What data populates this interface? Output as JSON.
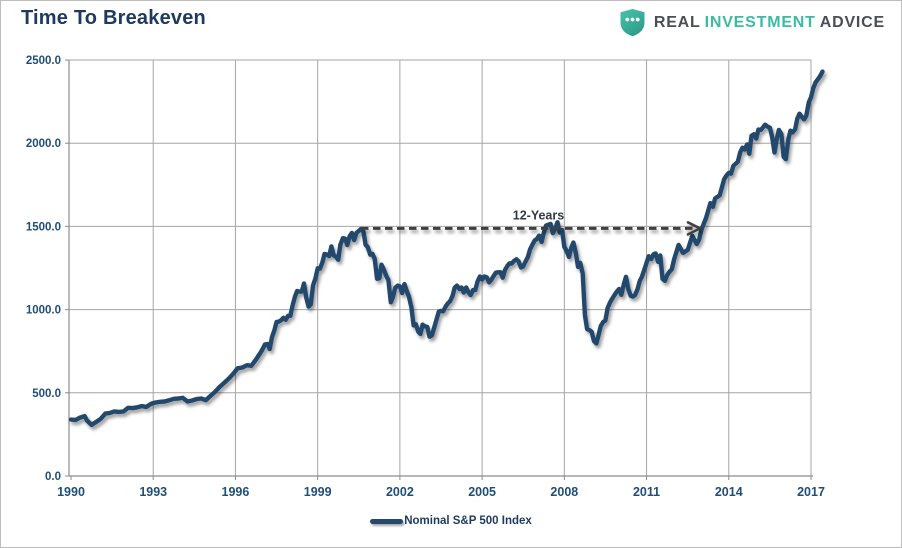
{
  "header": {
    "title": "Time To Breakeven"
  },
  "logo": {
    "shield_icon": "shield-with-three-dots",
    "shield_color_top": "#47c2ac",
    "shield_color_bottom": "#2e9e8a",
    "words": [
      {
        "text": "REAL",
        "color": "#4a4f57"
      },
      {
        "text": "INVESTMENT",
        "color": "#3bbba4"
      },
      {
        "text": "ADVICE",
        "color": "#4a4f57"
      }
    ]
  },
  "legend": {
    "label": "Nominal S&P 500 Index"
  },
  "chart_data": {
    "type": "line",
    "title": "Time To Breakeven",
    "xlabel": "",
    "ylabel": "",
    "xlim": [
      1990,
      2017.5
    ],
    "ylim": [
      0,
      2500
    ],
    "grid": true,
    "grid_color": "#a6a6a6",
    "axis_color": "#8c8c8c",
    "tick_label_color": "#1f4e79",
    "legend_position": "bottom-center",
    "x_ticks": [
      {
        "value": 1990,
        "label": "1990"
      },
      {
        "value": 1993,
        "label": "1993"
      },
      {
        "value": 1996,
        "label": "1996"
      },
      {
        "value": 1999,
        "label": "1999"
      },
      {
        "value": 2002,
        "label": "2002"
      },
      {
        "value": 2005,
        "label": "2005"
      },
      {
        "value": 2008,
        "label": "2008"
      },
      {
        "value": 2011,
        "label": "2011"
      },
      {
        "value": 2014,
        "label": "2014"
      },
      {
        "value": 2017,
        "label": "2017"
      }
    ],
    "y_ticks": [
      {
        "value": 0,
        "label": "0.0"
      },
      {
        "value": 500,
        "label": "500.0"
      },
      {
        "value": 1000,
        "label": "1000.0"
      },
      {
        "value": 1500,
        "label": "1500.0"
      },
      {
        "value": 2000,
        "label": "2000.0"
      },
      {
        "value": 2500,
        "label": "2500.0"
      }
    ],
    "annotation": {
      "label": "12-Years",
      "start_year": 2000.58,
      "end_year": 2012.95,
      "value": 1488,
      "arrow_color": "#3f3f3f",
      "label_color": "#2e3b47"
    },
    "series": [
      {
        "name": "Nominal S&P 500 Index",
        "color": "#234a6d",
        "points": [
          [
            1990.0,
            339
          ],
          [
            1990.17,
            337
          ],
          [
            1990.33,
            351
          ],
          [
            1990.5,
            360
          ],
          [
            1990.58,
            334
          ],
          [
            1990.75,
            307
          ],
          [
            1990.92,
            325
          ],
          [
            1991.08,
            343
          ],
          [
            1991.25,
            375
          ],
          [
            1991.42,
            379
          ],
          [
            1991.58,
            388
          ],
          [
            1991.75,
            385
          ],
          [
            1991.92,
            388
          ],
          [
            1992.08,
            410
          ],
          [
            1992.25,
            408
          ],
          [
            1992.42,
            413
          ],
          [
            1992.58,
            420
          ],
          [
            1992.75,
            415
          ],
          [
            1992.92,
            433
          ],
          [
            1993.08,
            442
          ],
          [
            1993.25,
            446
          ],
          [
            1993.42,
            448
          ],
          [
            1993.58,
            455
          ],
          [
            1993.75,
            464
          ],
          [
            1993.92,
            466
          ],
          [
            1994.08,
            470
          ],
          [
            1994.25,
            448
          ],
          [
            1994.42,
            454
          ],
          [
            1994.58,
            462
          ],
          [
            1994.75,
            466
          ],
          [
            1994.92,
            456
          ],
          [
            1995.08,
            480
          ],
          [
            1995.25,
            505
          ],
          [
            1995.42,
            535
          ],
          [
            1995.58,
            558
          ],
          [
            1995.75,
            585
          ],
          [
            1995.92,
            615
          ],
          [
            1996.08,
            647
          ],
          [
            1996.25,
            652
          ],
          [
            1996.42,
            666
          ],
          [
            1996.58,
            662
          ],
          [
            1996.75,
            700
          ],
          [
            1996.92,
            743
          ],
          [
            1997.0,
            766
          ],
          [
            1997.08,
            791
          ],
          [
            1997.17,
            793
          ],
          [
            1997.25,
            763
          ],
          [
            1997.33,
            833
          ],
          [
            1997.42,
            876
          ],
          [
            1997.5,
            926
          ],
          [
            1997.58,
            927
          ],
          [
            1997.67,
            937
          ],
          [
            1997.75,
            951
          ],
          [
            1997.83,
            939
          ],
          [
            1997.92,
            963
          ],
          [
            1998.0,
            963
          ],
          [
            1998.08,
            1023
          ],
          [
            1998.17,
            1077
          ],
          [
            1998.25,
            1112
          ],
          [
            1998.33,
            1108
          ],
          [
            1998.42,
            1109
          ],
          [
            1998.5,
            1157
          ],
          [
            1998.58,
            1074
          ],
          [
            1998.67,
            1018
          ],
          [
            1998.75,
            1032
          ],
          [
            1998.83,
            1144
          ],
          [
            1998.92,
            1190
          ],
          [
            1999.0,
            1248
          ],
          [
            1999.08,
            1246
          ],
          [
            1999.17,
            1282
          ],
          [
            1999.25,
            1334
          ],
          [
            1999.33,
            1332
          ],
          [
            1999.42,
            1322
          ],
          [
            1999.5,
            1380
          ],
          [
            1999.58,
            1327
          ],
          [
            1999.67,
            1318
          ],
          [
            1999.75,
            1300
          ],
          [
            1999.83,
            1391
          ],
          [
            1999.92,
            1429
          ],
          [
            2000.0,
            1426
          ],
          [
            2000.08,
            1388
          ],
          [
            2000.17,
            1442
          ],
          [
            2000.25,
            1461
          ],
          [
            2000.33,
            1418
          ],
          [
            2000.42,
            1462
          ],
          [
            2000.5,
            1473
          ],
          [
            2000.58,
            1485
          ],
          [
            2000.67,
            1468
          ],
          [
            2000.75,
            1390
          ],
          [
            2000.83,
            1375
          ],
          [
            2000.92,
            1330
          ],
          [
            2001.0,
            1335
          ],
          [
            2001.08,
            1306
          ],
          [
            2001.17,
            1185
          ],
          [
            2001.25,
            1189
          ],
          [
            2001.33,
            1270
          ],
          [
            2001.42,
            1238
          ],
          [
            2001.5,
            1204
          ],
          [
            2001.58,
            1178
          ],
          [
            2001.67,
            1044
          ],
          [
            2001.75,
            1077
          ],
          [
            2001.83,
            1131
          ],
          [
            2001.92,
            1144
          ],
          [
            2002.0,
            1140
          ],
          [
            2002.08,
            1100
          ],
          [
            2002.17,
            1153
          ],
          [
            2002.25,
            1112
          ],
          [
            2002.33,
            1079
          ],
          [
            2002.42,
            1014
          ],
          [
            2002.5,
            905
          ],
          [
            2002.58,
            912
          ],
          [
            2002.67,
            867
          ],
          [
            2002.75,
            854
          ],
          [
            2002.83,
            910
          ],
          [
            2002.92,
            899
          ],
          [
            2003.0,
            896
          ],
          [
            2003.08,
            837
          ],
          [
            2003.17,
            846
          ],
          [
            2003.25,
            890
          ],
          [
            2003.33,
            936
          ],
          [
            2003.42,
            988
          ],
          [
            2003.5,
            992
          ],
          [
            2003.58,
            990
          ],
          [
            2003.67,
            1019
          ],
          [
            2003.75,
            1038
          ],
          [
            2003.83,
            1050
          ],
          [
            2003.92,
            1081
          ],
          [
            2004.0,
            1132
          ],
          [
            2004.08,
            1144
          ],
          [
            2004.17,
            1124
          ],
          [
            2004.25,
            1133
          ],
          [
            2004.33,
            1103
          ],
          [
            2004.42,
            1133
          ],
          [
            2004.5,
            1105
          ],
          [
            2004.58,
            1088
          ],
          [
            2004.67,
            1118
          ],
          [
            2004.75,
            1118
          ],
          [
            2004.83,
            1168
          ],
          [
            2004.92,
            1199
          ],
          [
            2005.0,
            1181
          ],
          [
            2005.08,
            1199
          ],
          [
            2005.17,
            1194
          ],
          [
            2005.25,
            1164
          ],
          [
            2005.33,
            1178
          ],
          [
            2005.42,
            1202
          ],
          [
            2005.5,
            1222
          ],
          [
            2005.58,
            1224
          ],
          [
            2005.67,
            1225
          ],
          [
            2005.75,
            1192
          ],
          [
            2005.83,
            1237
          ],
          [
            2005.92,
            1262
          ],
          [
            2006.0,
            1278
          ],
          [
            2006.08,
            1277
          ],
          [
            2006.17,
            1293
          ],
          [
            2006.25,
            1302
          ],
          [
            2006.33,
            1290
          ],
          [
            2006.42,
            1253
          ],
          [
            2006.5,
            1260
          ],
          [
            2006.58,
            1287
          ],
          [
            2006.67,
            1317
          ],
          [
            2006.75,
            1363
          ],
          [
            2006.83,
            1389
          ],
          [
            2006.92,
            1416
          ],
          [
            2007.0,
            1424
          ],
          [
            2007.08,
            1445
          ],
          [
            2007.17,
            1407
          ],
          [
            2007.25,
            1463
          ],
          [
            2007.33,
            1505
          ],
          [
            2007.42,
            1510
          ],
          [
            2007.5,
            1515
          ],
          [
            2007.58,
            1460
          ],
          [
            2007.67,
            1490
          ],
          [
            2007.75,
            1525
          ],
          [
            2007.83,
            1463
          ],
          [
            2007.92,
            1479
          ],
          [
            2008.0,
            1378
          ],
          [
            2008.08,
            1354
          ],
          [
            2008.17,
            1317
          ],
          [
            2008.25,
            1370
          ],
          [
            2008.33,
            1403
          ],
          [
            2008.42,
            1341
          ],
          [
            2008.5,
            1257
          ],
          [
            2008.58,
            1281
          ],
          [
            2008.67,
            1217
          ],
          [
            2008.75,
            968
          ],
          [
            2008.83,
            883
          ],
          [
            2008.92,
            877
          ],
          [
            2009.0,
            866
          ],
          [
            2009.08,
            812
          ],
          [
            2009.17,
            797
          ],
          [
            2009.25,
            848
          ],
          [
            2009.33,
            902
          ],
          [
            2009.42,
            926
          ],
          [
            2009.5,
            935
          ],
          [
            2009.58,
            1009
          ],
          [
            2009.67,
            1044
          ],
          [
            2009.75,
            1067
          ],
          [
            2009.83,
            1088
          ],
          [
            2009.92,
            1110
          ],
          [
            2010.0,
            1124
          ],
          [
            2010.08,
            1089
          ],
          [
            2010.17,
            1152
          ],
          [
            2010.25,
            1197
          ],
          [
            2010.33,
            1125
          ],
          [
            2010.42,
            1083
          ],
          [
            2010.5,
            1079
          ],
          [
            2010.58,
            1087
          ],
          [
            2010.67,
            1122
          ],
          [
            2010.75,
            1171
          ],
          [
            2010.83,
            1198
          ],
          [
            2010.92,
            1241
          ],
          [
            2011.0,
            1282
          ],
          [
            2011.08,
            1321
          ],
          [
            2011.17,
            1304
          ],
          [
            2011.25,
            1331
          ],
          [
            2011.33,
            1338
          ],
          [
            2011.42,
            1287
          ],
          [
            2011.5,
            1325
          ],
          [
            2011.58,
            1185
          ],
          [
            2011.67,
            1173
          ],
          [
            2011.75,
            1207
          ],
          [
            2011.83,
            1226
          ],
          [
            2011.92,
            1243
          ],
          [
            2012.0,
            1300
          ],
          [
            2012.17,
            1389
          ],
          [
            2012.33,
            1341
          ],
          [
            2012.5,
            1359
          ],
          [
            2012.67,
            1443
          ],
          [
            2012.83,
            1394
          ],
          [
            2012.92,
            1422
          ],
          [
            2013.0,
            1480
          ],
          [
            2013.17,
            1550
          ],
          [
            2013.33,
            1640
          ],
          [
            2013.42,
            1618
          ],
          [
            2013.5,
            1668
          ],
          [
            2013.67,
            1687
          ],
          [
            2013.83,
            1783
          ],
          [
            2013.92,
            1807
          ],
          [
            2014.0,
            1822
          ],
          [
            2014.08,
            1817
          ],
          [
            2014.17,
            1864
          ],
          [
            2014.33,
            1889
          ],
          [
            2014.42,
            1947
          ],
          [
            2014.5,
            1973
          ],
          [
            2014.58,
            1962
          ],
          [
            2014.67,
            1993
          ],
          [
            2014.75,
            1937
          ],
          [
            2014.83,
            2045
          ],
          [
            2014.92,
            2054
          ],
          [
            2015.0,
            2028
          ],
          [
            2015.08,
            2082
          ],
          [
            2015.17,
            2080
          ],
          [
            2015.25,
            2095
          ],
          [
            2015.33,
            2111
          ],
          [
            2015.42,
            2099
          ],
          [
            2015.5,
            2094
          ],
          [
            2015.58,
            2039
          ],
          [
            2015.67,
            1944
          ],
          [
            2015.75,
            2024
          ],
          [
            2015.83,
            2080
          ],
          [
            2015.92,
            2054
          ],
          [
            2016.0,
            1918
          ],
          [
            2016.08,
            1904
          ],
          [
            2016.17,
            2022
          ],
          [
            2016.25,
            2075
          ],
          [
            2016.33,
            2065
          ],
          [
            2016.42,
            2083
          ],
          [
            2016.5,
            2148
          ],
          [
            2016.58,
            2177
          ],
          [
            2016.67,
            2157
          ],
          [
            2016.75,
            2143
          ],
          [
            2016.83,
            2165
          ],
          [
            2016.92,
            2246
          ],
          [
            2017.0,
            2275
          ],
          [
            2017.08,
            2330
          ],
          [
            2017.17,
            2367
          ],
          [
            2017.25,
            2384
          ],
          [
            2017.33,
            2402
          ],
          [
            2017.42,
            2430
          ]
        ]
      }
    ]
  }
}
